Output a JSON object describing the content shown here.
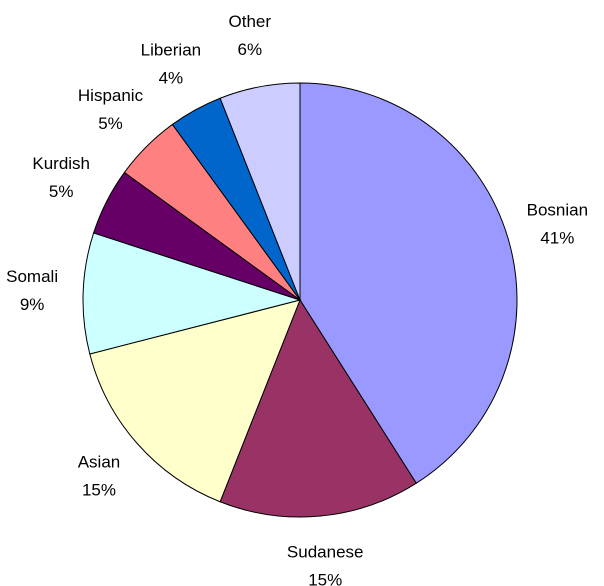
{
  "chart_data": {
    "type": "pie",
    "categories": [
      "Bosnian",
      "Sudanese",
      "Asian",
      "Somali",
      "Kurdish",
      "Hispanic",
      "Liberian",
      "Other"
    ],
    "values": [
      41,
      15,
      15,
      9,
      5,
      5,
      4,
      6
    ],
    "value_labels": [
      "41%",
      "15%",
      "15%",
      "9%",
      "5%",
      "5%",
      "4%",
      "6%"
    ],
    "colors": [
      "#9999ff",
      "#993366",
      "#ffffcc",
      "#ccffff",
      "#660066",
      "#ff8080",
      "#0066cc",
      "#ccccff"
    ]
  }
}
